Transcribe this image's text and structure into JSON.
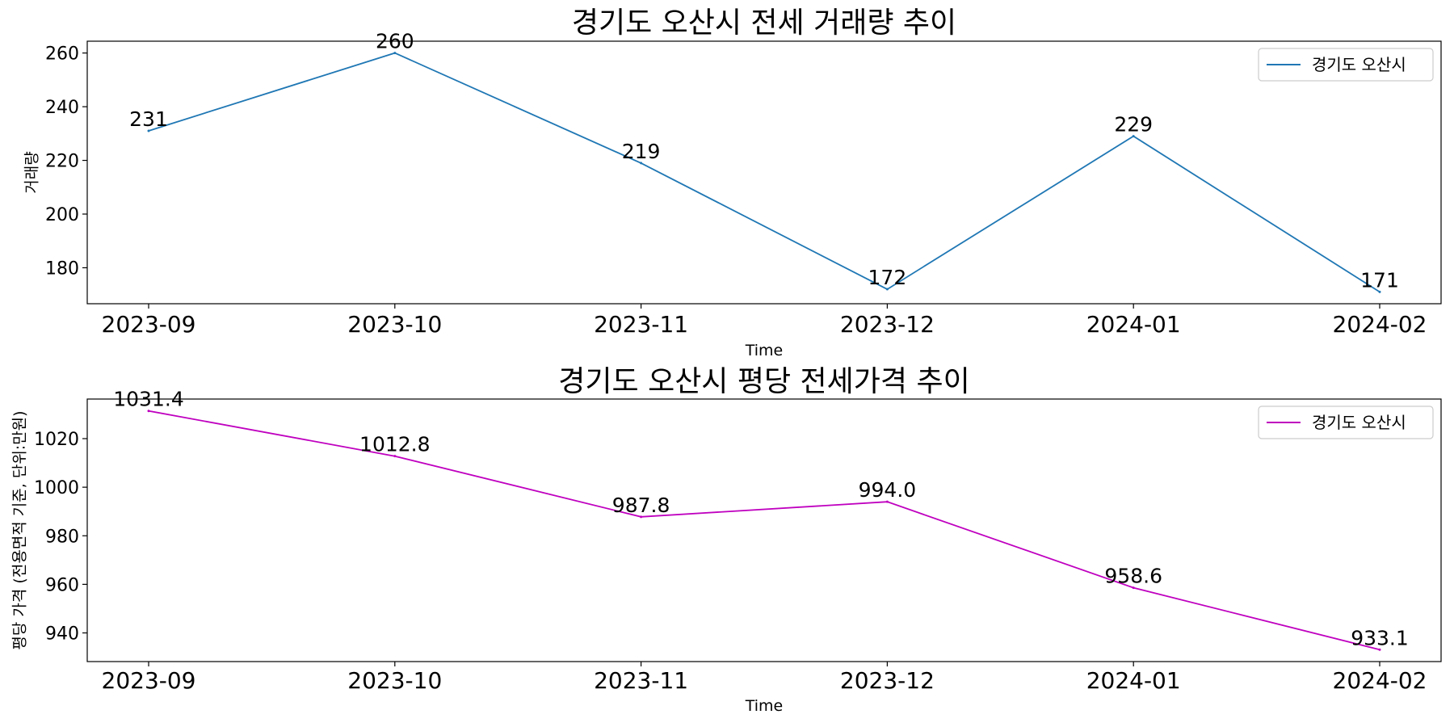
{
  "chart_data": [
    {
      "type": "line",
      "title": "경기도 오산시 전세 거래량 추이",
      "xlabel": "Time",
      "ylabel": "거래량",
      "categories": [
        "2023-09",
        "2023-10",
        "2023-11",
        "2023-12",
        "2024-01",
        "2024-02"
      ],
      "series": [
        {
          "name": "경기도 오산시",
          "values": [
            231,
            260,
            219,
            172,
            229,
            171
          ],
          "color": "#1f77b4"
        }
      ],
      "data_labels": [
        "231",
        "260",
        "219",
        "172",
        "229",
        "171"
      ],
      "ylim": [
        166.6,
        264.4
      ],
      "yticks": [
        180,
        200,
        220,
        240,
        260
      ],
      "grid": false,
      "legend_position": "upper right"
    },
    {
      "type": "line",
      "title": "경기도 오산시 평당 전세가격 추이",
      "xlabel": "Time",
      "ylabel": "평당 가격 (전용면적 기준, 단위:만원)",
      "categories": [
        "2023-09",
        "2023-10",
        "2023-11",
        "2023-12",
        "2024-01",
        "2024-02"
      ],
      "series": [
        {
          "name": "경기도 오산시",
          "values": [
            1031.4,
            1012.8,
            987.8,
            994.0,
            958.6,
            933.1
          ],
          "color": "#bf00bf"
        }
      ],
      "data_labels": [
        "1031.4",
        "1012.8",
        "987.8",
        "994.0",
        "958.6",
        "933.1"
      ],
      "ylim": [
        928.2,
        1036.3
      ],
      "yticks": [
        940,
        960,
        980,
        1000,
        1020
      ],
      "grid": false,
      "legend_position": "upper right"
    }
  ]
}
